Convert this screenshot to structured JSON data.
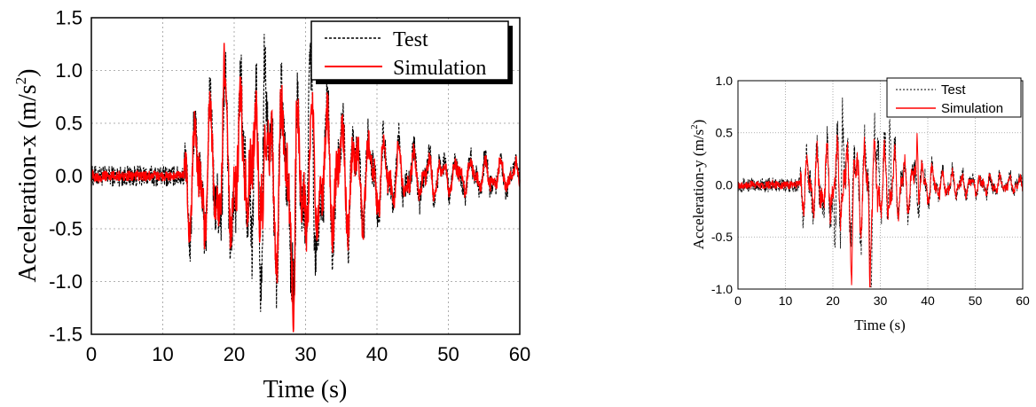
{
  "chart_data": [
    {
      "type": "line",
      "xlabel": "Time (s)",
      "ylabel_base": "Acceleration-x (m/s",
      "ylabel_sup": "2",
      "ylabel_close": ")",
      "xlim": [
        0,
        60
      ],
      "ylim": [
        -1.5,
        1.5
      ],
      "xticks": [
        0,
        10,
        20,
        30,
        40,
        50,
        60
      ],
      "xtick_labels": [
        "0",
        "10",
        "20",
        "30",
        "40",
        "50",
        "60"
      ],
      "yticks": [
        1.5,
        1.0,
        0.5,
        0.0,
        -0.5,
        -1.0,
        -1.5
      ],
      "ytick_labels": [
        "1.5",
        "1.0",
        "0.5",
        "0.0",
        "-0.5",
        "-1.0",
        "-1.5"
      ],
      "grid": true,
      "legend_position": "top-right",
      "series": [
        {
          "name": "Test",
          "color": "#000000",
          "style": "dashed",
          "noise_pre": 0.1,
          "noise_post": 0.08,
          "scale": 1.1,
          "peaks": [
            [
              21.5,
              1.06
            ],
            [
              28.5,
              -1.4
            ],
            [
              24.2,
              0.9
            ],
            [
              22.5,
              -0.93
            ],
            [
              30.5,
              0.85
            ],
            [
              31.2,
              -0.97
            ]
          ]
        },
        {
          "name": "Simulation",
          "color": "#ff0000",
          "style": "solid",
          "noise_pre": 0.05,
          "noise_post": 0.04,
          "scale": 0.9,
          "peaks": [
            [
              21.6,
              0.72
            ],
            [
              28.4,
              -1.2
            ],
            [
              23.8,
              0.62
            ],
            [
              18.5,
              0.65
            ]
          ]
        }
      ]
    },
    {
      "type": "line",
      "xlabel": "Time (s)",
      "ylabel_base": "Acceleration-y (m/s",
      "ylabel_sup": "2",
      "ylabel_close": ")",
      "xlim": [
        0,
        60
      ],
      "ylim": [
        -1.0,
        1.0
      ],
      "xticks": [
        0,
        10,
        20,
        30,
        40,
        50,
        60
      ],
      "xtick_labels": [
        "0",
        "10",
        "20",
        "30",
        "40",
        "50",
        "60"
      ],
      "yticks": [
        1.0,
        0.5,
        0.0,
        -0.5,
        -1.0
      ],
      "ytick_labels": [
        "1.0",
        "0.5",
        "0.0",
        "-0.5",
        "-1.0"
      ],
      "grid": true,
      "legend_position": "top-right",
      "series": [
        {
          "name": "Test",
          "color": "#000000",
          "style": "dashed",
          "noise_pre": 0.07,
          "noise_post": 0.05,
          "scale": 0.55,
          "peaks": [
            [
              22,
              0.79
            ],
            [
              28,
              -0.9
            ],
            [
              29.5,
              0.58
            ],
            [
              20.5,
              -0.64
            ],
            [
              32,
              0.72
            ]
          ]
        },
        {
          "name": "Simulation",
          "color": "#ff0000",
          "style": "solid",
          "noise_pre": 0.04,
          "noise_post": 0.03,
          "scale": 0.45,
          "peaks": [
            [
              37.8,
              0.55
            ],
            [
              27.8,
              -0.7
            ],
            [
              24,
              -0.58
            ]
          ]
        }
      ]
    }
  ]
}
